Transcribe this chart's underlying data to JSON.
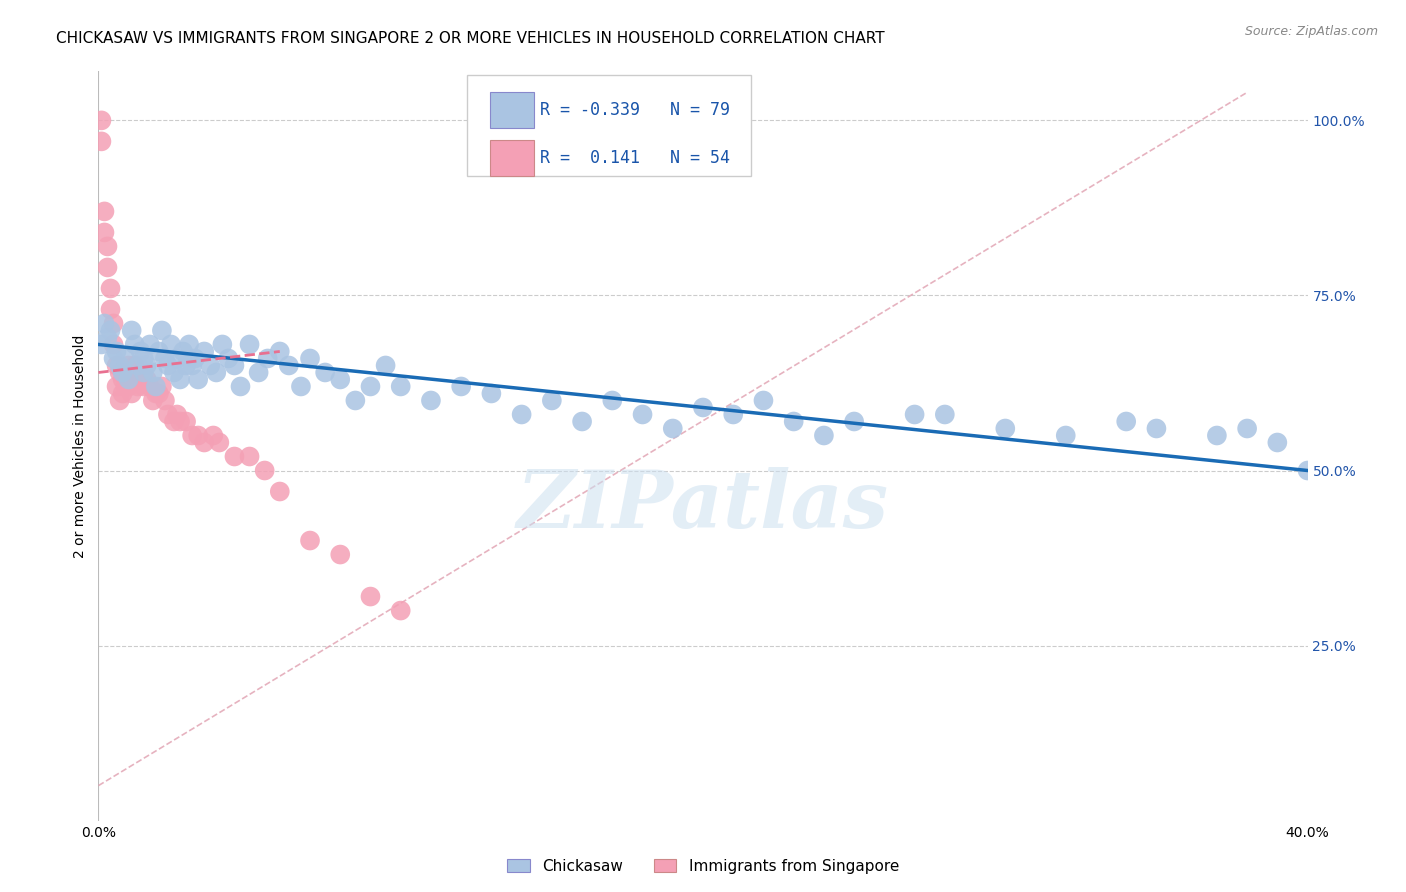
{
  "title": "CHICKASAW VS IMMIGRANTS FROM SINGAPORE 2 OR MORE VEHICLES IN HOUSEHOLD CORRELATION CHART",
  "source": "Source: ZipAtlas.com",
  "ylabel": "2 or more Vehicles in Household",
  "ytick_labels": [
    "100.0%",
    "75.0%",
    "50.0%",
    "25.0%"
  ],
  "ytick_values": [
    1.0,
    0.75,
    0.5,
    0.25
  ],
  "xlim": [
    0.0,
    0.4
  ],
  "ylim": [
    0.0,
    1.07
  ],
  "legend_labels": [
    "Chickasaw",
    "Immigrants from Singapore"
  ],
  "chickasaw_color": "#aac4e2",
  "singapore_color": "#f4a0b5",
  "chickasaw_line_color": "#1a6bb5",
  "singapore_line_color": "#e87090",
  "diagonal_color": "#e0b0b8",
  "R_chickasaw": -0.339,
  "N_chickasaw": 79,
  "R_singapore": 0.141,
  "N_singapore": 54,
  "title_fontsize": 11,
  "axis_label_fontsize": 10,
  "tick_fontsize": 10,
  "watermark_text": "ZIPatlas",
  "background_color": "#ffffff",
  "grid_color": "#cccccc",
  "chickasaw_x": [
    0.001,
    0.002,
    0.003,
    0.004,
    0.005,
    0.006,
    0.007,
    0.008,
    0.009,
    0.01,
    0.011,
    0.012,
    0.013,
    0.014,
    0.015,
    0.015,
    0.016,
    0.017,
    0.018,
    0.019,
    0.02,
    0.021,
    0.022,
    0.023,
    0.024,
    0.025,
    0.026,
    0.027,
    0.028,
    0.029,
    0.03,
    0.031,
    0.032,
    0.033,
    0.035,
    0.037,
    0.039,
    0.041,
    0.043,
    0.045,
    0.047,
    0.05,
    0.053,
    0.056,
    0.06,
    0.063,
    0.067,
    0.07,
    0.075,
    0.08,
    0.085,
    0.09,
    0.095,
    0.1,
    0.11,
    0.12,
    0.13,
    0.14,
    0.15,
    0.16,
    0.17,
    0.18,
    0.19,
    0.2,
    0.21,
    0.22,
    0.23,
    0.24,
    0.25,
    0.27,
    0.28,
    0.3,
    0.32,
    0.34,
    0.35,
    0.37,
    0.38,
    0.39,
    0.4
  ],
  "chickasaw_y": [
    0.68,
    0.71,
    0.69,
    0.7,
    0.66,
    0.67,
    0.65,
    0.64,
    0.66,
    0.63,
    0.7,
    0.68,
    0.65,
    0.67,
    0.66,
    0.64,
    0.65,
    0.68,
    0.64,
    0.62,
    0.67,
    0.7,
    0.66,
    0.65,
    0.68,
    0.64,
    0.66,
    0.63,
    0.67,
    0.65,
    0.68,
    0.65,
    0.66,
    0.63,
    0.67,
    0.65,
    0.64,
    0.68,
    0.66,
    0.65,
    0.62,
    0.68,
    0.64,
    0.66,
    0.67,
    0.65,
    0.62,
    0.66,
    0.64,
    0.63,
    0.6,
    0.62,
    0.65,
    0.62,
    0.6,
    0.62,
    0.61,
    0.58,
    0.6,
    0.57,
    0.6,
    0.58,
    0.56,
    0.59,
    0.58,
    0.6,
    0.57,
    0.55,
    0.57,
    0.58,
    0.58,
    0.56,
    0.55,
    0.57,
    0.56,
    0.55,
    0.56,
    0.54,
    0.5
  ],
  "singapore_x": [
    0.001,
    0.001,
    0.002,
    0.002,
    0.003,
    0.003,
    0.004,
    0.004,
    0.005,
    0.005,
    0.006,
    0.006,
    0.007,
    0.007,
    0.008,
    0.008,
    0.009,
    0.009,
    0.01,
    0.01,
    0.011,
    0.011,
    0.012,
    0.012,
    0.013,
    0.013,
    0.014,
    0.015,
    0.015,
    0.016,
    0.017,
    0.018,
    0.019,
    0.02,
    0.021,
    0.022,
    0.023,
    0.025,
    0.026,
    0.027,
    0.029,
    0.031,
    0.033,
    0.035,
    0.038,
    0.04,
    0.045,
    0.05,
    0.055,
    0.06,
    0.07,
    0.08,
    0.09,
    0.1
  ],
  "singapore_y": [
    1.0,
    0.97,
    0.87,
    0.84,
    0.82,
    0.79,
    0.76,
    0.73,
    0.71,
    0.68,
    0.65,
    0.62,
    0.64,
    0.6,
    0.63,
    0.61,
    0.64,
    0.62,
    0.65,
    0.62,
    0.64,
    0.61,
    0.65,
    0.63,
    0.64,
    0.62,
    0.63,
    0.63,
    0.62,
    0.63,
    0.62,
    0.6,
    0.61,
    0.61,
    0.62,
    0.6,
    0.58,
    0.57,
    0.58,
    0.57,
    0.57,
    0.55,
    0.55,
    0.54,
    0.55,
    0.54,
    0.52,
    0.52,
    0.5,
    0.47,
    0.4,
    0.38,
    0.32,
    0.3
  ]
}
